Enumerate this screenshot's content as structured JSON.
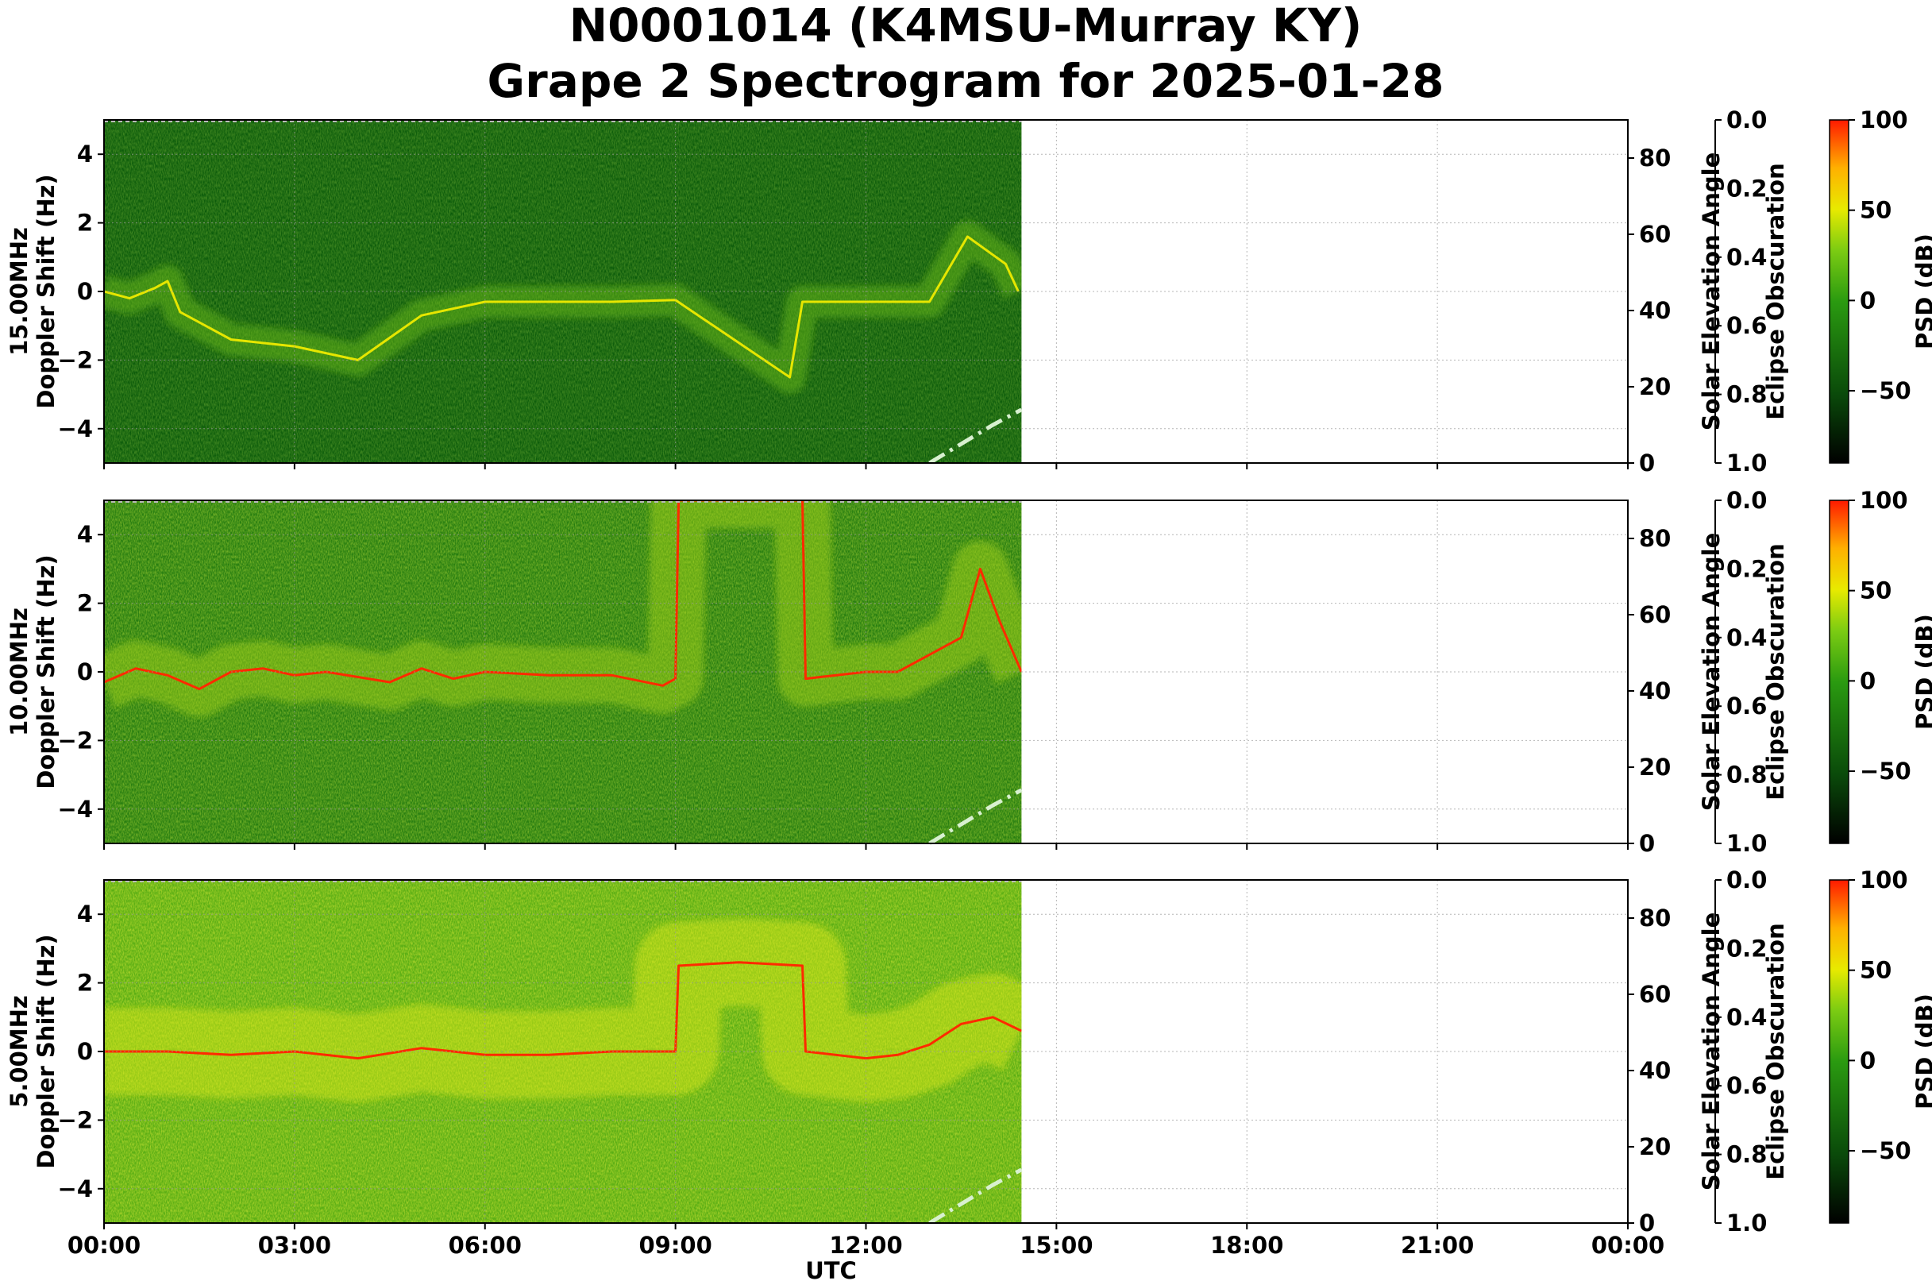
{
  "title_lines": [
    "N0001014 (K4MSU-Murray KY)",
    "Grape 2 Spectrogram for 2025-01-28"
  ],
  "chart_data": [
    {
      "type": "heatmap",
      "subplot": "15.00MHz",
      "ylabel": "15.00MHz\nDoppler Shift (Hz)",
      "xlabel": "",
      "ylim": [
        -5,
        5
      ],
      "xlim_hours": [
        0,
        24
      ],
      "data_end_utc": "14:27",
      "yticks": [
        "4",
        "2",
        "0",
        "−2",
        "−4"
      ],
      "carrier_trace": [
        [
          0,
          0.0
        ],
        [
          0.4,
          -0.2
        ],
        [
          0.8,
          0.1
        ],
        [
          1.0,
          0.3
        ],
        [
          1.2,
          -0.6
        ],
        [
          2.0,
          -1.4
        ],
        [
          3.0,
          -1.6
        ],
        [
          4.0,
          -2.0
        ],
        [
          5.0,
          -0.7
        ],
        [
          6.0,
          -0.3
        ],
        [
          7.0,
          -0.3
        ],
        [
          8.0,
          -0.3
        ],
        [
          9.0,
          -0.25
        ],
        [
          10.8,
          -2.5
        ],
        [
          11.0,
          -0.3
        ],
        [
          13.0,
          -0.3
        ],
        [
          13.6,
          1.6
        ],
        [
          13.9,
          1.2
        ],
        [
          14.2,
          0.8
        ],
        [
          14.4,
          0.0
        ]
      ],
      "overall_level": "low (green)",
      "solar_elevation_ylabel": "Solar Elevation Angle",
      "solar_elevation_ylim": [
        0,
        90
      ],
      "solar_elevation_ticks": [
        "0",
        "20",
        "40",
        "60",
        "80"
      ],
      "solar_elevation_curve": [
        [
          13.0,
          0
        ],
        [
          13.5,
          5
        ],
        [
          14.0,
          10
        ],
        [
          14.45,
          14
        ]
      ],
      "eclipse_ylabel": "Eclipse Obscuration",
      "eclipse_ylim": [
        1.0,
        0.0
      ],
      "eclipse_ticks": [
        "0.0",
        "0.2",
        "0.4",
        "0.6",
        "0.8",
        "1.0"
      ],
      "colorbar_label": "PSD (dB)",
      "colorbar_range": [
        -90,
        100
      ],
      "colorbar_ticks": [
        "100",
        "50",
        "0",
        "−50"
      ]
    },
    {
      "type": "heatmap",
      "subplot": "10.00MHz",
      "ylabel": "10.00MHz\nDoppler Shift (Hz)",
      "xlabel": "",
      "ylim": [
        -5,
        5
      ],
      "xlim_hours": [
        0,
        24
      ],
      "data_end_utc": "14:27",
      "yticks": [
        "4",
        "2",
        "0",
        "−2",
        "−4"
      ],
      "carrier_trace": [
        [
          0,
          -0.3
        ],
        [
          0.5,
          0.1
        ],
        [
          1.0,
          -0.1
        ],
        [
          1.5,
          -0.5
        ],
        [
          2.0,
          0.0
        ],
        [
          2.5,
          0.1
        ],
        [
          3.0,
          -0.1
        ],
        [
          3.5,
          0.0
        ],
        [
          4.5,
          -0.3
        ],
        [
          5.0,
          0.1
        ],
        [
          5.5,
          -0.2
        ],
        [
          6.0,
          0.0
        ],
        [
          7.0,
          -0.1
        ],
        [
          8.0,
          -0.1
        ],
        [
          8.8,
          -0.4
        ],
        [
          9.0,
          -0.2
        ],
        [
          9.05,
          5.0
        ],
        [
          11.0,
          5.0
        ],
        [
          11.05,
          -0.2
        ],
        [
          12.0,
          0.0
        ],
        [
          12.5,
          0.0
        ],
        [
          13.0,
          0.5
        ],
        [
          13.5,
          1.0
        ],
        [
          13.8,
          3.0
        ],
        [
          14.1,
          1.5
        ],
        [
          14.45,
          0.0
        ]
      ],
      "overall_level": "medium",
      "solar_elevation_ylabel": "Solar Elevation Angle",
      "solar_elevation_ylim": [
        0,
        90
      ],
      "solar_elevation_ticks": [
        "0",
        "20",
        "40",
        "60",
        "80"
      ],
      "solar_elevation_curve": [
        [
          13.0,
          0
        ],
        [
          13.5,
          5
        ],
        [
          14.0,
          10
        ],
        [
          14.45,
          14
        ]
      ],
      "eclipse_ylabel": "Eclipse Obscuration",
      "eclipse_ylim": [
        1.0,
        0.0
      ],
      "eclipse_ticks": [
        "0.0",
        "0.2",
        "0.4",
        "0.6",
        "0.8",
        "1.0"
      ],
      "colorbar_label": "PSD (dB)",
      "colorbar_range": [
        -90,
        100
      ],
      "colorbar_ticks": [
        "100",
        "50",
        "0",
        "−50"
      ]
    },
    {
      "type": "heatmap",
      "subplot": "5.00MHz",
      "ylabel": "5.00MHz\nDoppler Shift (Hz)",
      "xlabel": "UTC",
      "ylim": [
        -5,
        5
      ],
      "xlim_hours": [
        0,
        24
      ],
      "data_end_utc": "14:27",
      "yticks": [
        "4",
        "2",
        "0",
        "−2",
        "−4"
      ],
      "xticks": [
        "00:00",
        "03:00",
        "06:00",
        "09:00",
        "12:00",
        "15:00",
        "18:00",
        "21:00",
        "00:00"
      ],
      "carrier_trace": [
        [
          0,
          0.0
        ],
        [
          1.0,
          0.0
        ],
        [
          2.0,
          -0.1
        ],
        [
          3.0,
          0.0
        ],
        [
          4.0,
          -0.2
        ],
        [
          5.0,
          0.1
        ],
        [
          6.0,
          -0.1
        ],
        [
          7.0,
          -0.1
        ],
        [
          8.0,
          0.0
        ],
        [
          9.0,
          0.0
        ],
        [
          9.05,
          2.5
        ],
        [
          10.0,
          2.6
        ],
        [
          11.0,
          2.5
        ],
        [
          11.05,
          0.0
        ],
        [
          12.0,
          -0.2
        ],
        [
          12.5,
          -0.1
        ],
        [
          13.0,
          0.2
        ],
        [
          13.5,
          0.8
        ],
        [
          14.0,
          1.0
        ],
        [
          14.45,
          0.6
        ]
      ],
      "overall_level": "high (yellow)",
      "solar_elevation_ylabel": "Solar Elevation Angle",
      "solar_elevation_ylim": [
        0,
        90
      ],
      "solar_elevation_ticks": [
        "0",
        "20",
        "40",
        "60",
        "80"
      ],
      "solar_elevation_curve": [
        [
          13.0,
          0
        ],
        [
          13.5,
          5
        ],
        [
          14.0,
          10
        ],
        [
          14.45,
          14
        ]
      ],
      "eclipse_ylabel": "Eclipse Obscuration",
      "eclipse_ylim": [
        1.0,
        0.0
      ],
      "eclipse_ticks": [
        "0.0",
        "0.2",
        "0.4",
        "0.6",
        "0.8",
        "1.0"
      ],
      "colorbar_label": "PSD (dB)",
      "colorbar_range": [
        -90,
        100
      ],
      "colorbar_ticks": [
        "100",
        "50",
        "0",
        "−50"
      ]
    }
  ],
  "colors": {
    "green_low": "#0a5a0a",
    "green_mid": "#2f9a10",
    "yellow": "#e6e600",
    "red": "#ff2a00",
    "elevation_line": "#d8f0d0"
  }
}
